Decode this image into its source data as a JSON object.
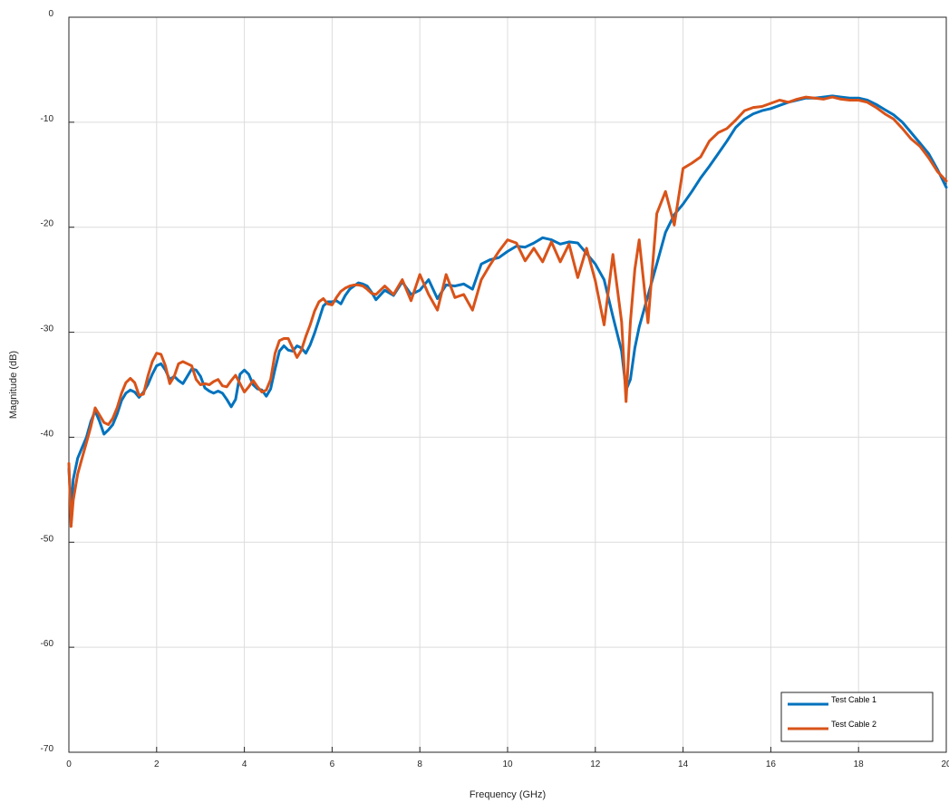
{
  "chart_data": {
    "type": "line",
    "title": "",
    "xlabel": "Frequency (GHz)",
    "ylabel": "Magnitude (dB)",
    "xlim": [
      0,
      20
    ],
    "ylim": [
      -70,
      0
    ],
    "xticks": [
      "0",
      "2",
      "4",
      "6",
      "8",
      "10",
      "12",
      "14",
      "16",
      "18",
      "20"
    ],
    "yticks": [
      "0",
      "-10",
      "-20",
      "-30",
      "-40",
      "-50",
      "-60",
      "-70"
    ],
    "grid": true,
    "legend_position": "bottom-right",
    "series": [
      {
        "name": "Test Cable 1",
        "color": "#0072BD",
        "x": [
          0,
          0.05,
          0.1,
          0.2,
          0.3,
          0.4,
          0.5,
          0.6,
          0.7,
          0.8,
          0.9,
          1.0,
          1.1,
          1.2,
          1.3,
          1.4,
          1.5,
          1.6,
          1.7,
          1.8,
          1.9,
          2.0,
          2.1,
          2.2,
          2.3,
          2.4,
          2.5,
          2.6,
          2.7,
          2.8,
          2.9,
          3.0,
          3.1,
          3.2,
          3.3,
          3.4,
          3.5,
          3.6,
          3.7,
          3.8,
          3.9,
          4.0,
          4.1,
          4.2,
          4.3,
          4.4,
          4.5,
          4.6,
          4.7,
          4.8,
          4.9,
          5.0,
          5.1,
          5.2,
          5.3,
          5.4,
          5.5,
          5.6,
          5.7,
          5.8,
          5.9,
          6.0,
          6.1,
          6.2,
          6.3,
          6.4,
          6.5,
          6.6,
          6.7,
          6.8,
          6.9,
          7.0,
          7.2,
          7.4,
          7.6,
          7.8,
          8.0,
          8.2,
          8.4,
          8.6,
          8.8,
          9.0,
          9.2,
          9.4,
          9.6,
          9.8,
          10.0,
          10.2,
          10.4,
          10.6,
          10.8,
          11.0,
          11.2,
          11.4,
          11.6,
          11.8,
          12.0,
          12.2,
          12.4,
          12.6,
          12.7,
          12.8,
          12.9,
          13.0,
          13.2,
          13.4,
          13.6,
          13.8,
          14.0,
          14.2,
          14.4,
          14.6,
          14.8,
          15.0,
          15.2,
          15.4,
          15.6,
          15.8,
          16.0,
          16.2,
          16.4,
          16.6,
          16.8,
          17.0,
          17.2,
          17.4,
          17.6,
          17.8,
          18.0,
          18.2,
          18.4,
          18.6,
          18.8,
          19.0,
          19.2,
          19.4,
          19.6,
          19.8,
          20.0
        ],
        "y": [
          -43,
          -47,
          -44,
          -42,
          -41,
          -40,
          -38.5,
          -37.5,
          -38.5,
          -39.7,
          -39.3,
          -38.8,
          -37.8,
          -36.5,
          -35.8,
          -35.5,
          -35.7,
          -36.2,
          -35.7,
          -35,
          -34,
          -33.2,
          -33,
          -33.6,
          -34.5,
          -34.2,
          -34.6,
          -34.9,
          -34.2,
          -33.5,
          -33.6,
          -34.2,
          -35.3,
          -35.6,
          -35.8,
          -35.6,
          -35.8,
          -36.4,
          -37.1,
          -36.4,
          -34,
          -33.6,
          -34,
          -35,
          -35.4,
          -35.5,
          -36.1,
          -35.4,
          -33.5,
          -31.8,
          -31.3,
          -31.7,
          -31.8,
          -31.3,
          -31.5,
          -32,
          -31.2,
          -30.1,
          -28.8,
          -27.5,
          -27.1,
          -27.1,
          -27,
          -27.3,
          -26.5,
          -25.9,
          -25.6,
          -25.3,
          -25.4,
          -25.6,
          -26.2,
          -26.9,
          -26,
          -26.5,
          -25.2,
          -26.4,
          -26,
          -25,
          -26.8,
          -25.5,
          -25.6,
          -25.4,
          -25.9,
          -23.5,
          -23.1,
          -22.9,
          -22.3,
          -21.8,
          -21.9,
          -21.5,
          -21,
          -21.2,
          -21.6,
          -21.4,
          -21.5,
          -22.5,
          -23.5,
          -25,
          -28.5,
          -31.8,
          -35.5,
          -34.5,
          -31.5,
          -29.5,
          -26.5,
          -23.5,
          -20.5,
          -18.8,
          -17.8,
          -16.6,
          -15.3,
          -14.2,
          -13,
          -11.8,
          -10.5,
          -9.7,
          -9.2,
          -8.9,
          -8.7,
          -8.4,
          -8.1,
          -7.9,
          -7.7,
          -7.7,
          -7.6,
          -7.5,
          -7.6,
          -7.7,
          -7.7,
          -7.9,
          -8.3,
          -8.8,
          -9.3,
          -10,
          -11,
          -12,
          -13,
          -14.5,
          -16.2
        ]
      },
      {
        "name": "Test Cable 2",
        "color": "#D95319",
        "x": [
          0,
          0.05,
          0.1,
          0.2,
          0.3,
          0.4,
          0.5,
          0.6,
          0.7,
          0.8,
          0.9,
          1.0,
          1.1,
          1.2,
          1.3,
          1.4,
          1.5,
          1.6,
          1.7,
          1.8,
          1.9,
          2.0,
          2.1,
          2.2,
          2.3,
          2.4,
          2.5,
          2.6,
          2.7,
          2.8,
          2.9,
          3.0,
          3.1,
          3.2,
          3.3,
          3.4,
          3.5,
          3.6,
          3.7,
          3.8,
          3.9,
          4.0,
          4.1,
          4.2,
          4.3,
          4.4,
          4.5,
          4.6,
          4.7,
          4.8,
          4.9,
          5.0,
          5.1,
          5.2,
          5.3,
          5.4,
          5.5,
          5.6,
          5.7,
          5.8,
          5.9,
          6.0,
          6.1,
          6.2,
          6.3,
          6.4,
          6.5,
          6.6,
          6.7,
          6.8,
          6.9,
          7.0,
          7.2,
          7.4,
          7.6,
          7.8,
          8.0,
          8.2,
          8.4,
          8.6,
          8.8,
          9.0,
          9.2,
          9.4,
          9.6,
          9.8,
          10.0,
          10.2,
          10.4,
          10.6,
          10.8,
          11.0,
          11.2,
          11.4,
          11.6,
          11.8,
          12.0,
          12.2,
          12.4,
          12.6,
          12.7,
          12.8,
          12.9,
          13.0,
          13.2,
          13.4,
          13.6,
          13.8,
          14.0,
          14.2,
          14.4,
          14.6,
          14.8,
          15.0,
          15.2,
          15.4,
          15.6,
          15.8,
          16.0,
          16.2,
          16.4,
          16.6,
          16.8,
          17.0,
          17.2,
          17.4,
          17.6,
          17.8,
          18.0,
          18.2,
          18.4,
          18.6,
          18.8,
          19.0,
          19.2,
          19.4,
          19.6,
          19.8,
          20.0
        ],
        "y": [
          -42.5,
          -48.5,
          -46,
          -43.5,
          -42,
          -40.5,
          -39,
          -37.2,
          -37.9,
          -38.6,
          -38.8,
          -38.2,
          -37.2,
          -35.8,
          -34.8,
          -34.4,
          -34.8,
          -36,
          -35.9,
          -34.2,
          -32.8,
          -32,
          -32.1,
          -33.2,
          -34.9,
          -34.2,
          -33,
          -32.8,
          -33,
          -33.2,
          -34.5,
          -35,
          -34.9,
          -35,
          -34.7,
          -34.5,
          -35.1,
          -35.2,
          -34.6,
          -34.1,
          -34.9,
          -35.7,
          -35.2,
          -34.6,
          -35.2,
          -35.7,
          -35.5,
          -34.5,
          -32,
          -30.8,
          -30.6,
          -30.6,
          -31.5,
          -32.4,
          -31.7,
          -30.4,
          -29.3,
          -28,
          -27.1,
          -26.8,
          -27.3,
          -27.4,
          -26.7,
          -26.1,
          -25.8,
          -25.6,
          -25.5,
          -25.5,
          -25.6,
          -25.9,
          -26.3,
          -26.4,
          -25.6,
          -26.4,
          -25,
          -27,
          -24.5,
          -26.4,
          -27.9,
          -24.5,
          -26.7,
          -26.4,
          -27.9,
          -25,
          -23.6,
          -22.3,
          -21.2,
          -21.5,
          -23.2,
          -22,
          -23.3,
          -21.4,
          -23.3,
          -21.6,
          -24.8,
          -22,
          -25.1,
          -29.3,
          -22.6,
          -29,
          -36.6,
          -29,
          -24,
          -21.2,
          -29.1,
          -18.7,
          -16.6,
          -19.8,
          -14.4,
          -13.9,
          -13.3,
          -11.8,
          -11,
          -10.6,
          -9.8,
          -8.9,
          -8.6,
          -8.5,
          -8.2,
          -7.9,
          -8.1,
          -7.8,
          -7.6,
          -7.7,
          -7.8,
          -7.6,
          -7.8,
          -7.9,
          -7.9,
          -8.1,
          -8.6,
          -9.2,
          -9.7,
          -10.6,
          -11.6,
          -12.3,
          -13.4,
          -14.7,
          -15.6
        ]
      }
    ]
  }
}
